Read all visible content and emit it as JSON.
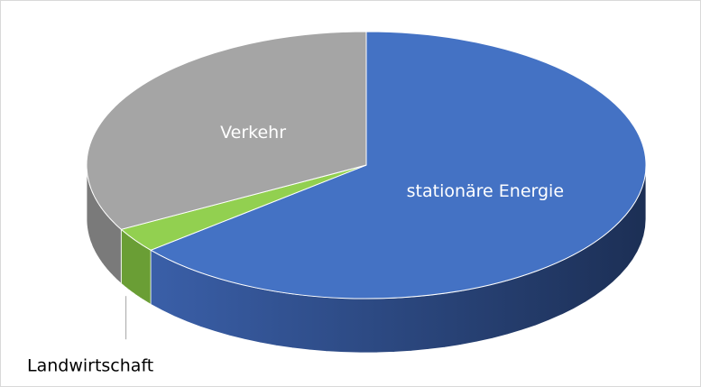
{
  "chart_data": {
    "type": "pie",
    "categories": [
      "stationäre Energie",
      "Landwirtschaft",
      "Verkehr"
    ],
    "values": [
      64,
      3,
      33
    ],
    "colors": [
      "#4472c4",
      "#92d050",
      "#a5a5a5"
    ],
    "side_colors": [
      "#2a4780",
      "#6a9e35",
      "#7a7a7a"
    ]
  }
}
